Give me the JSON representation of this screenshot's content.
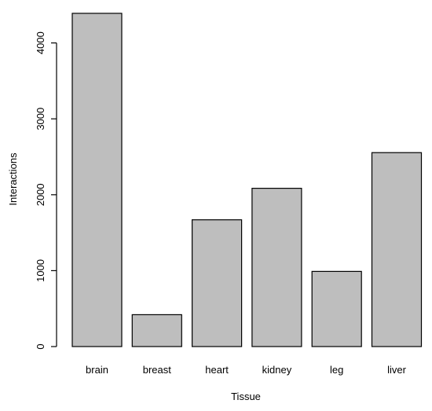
{
  "chart_data": {
    "type": "bar",
    "categories": [
      "brain",
      "breast",
      "heart",
      "kidney",
      "leg",
      "liver"
    ],
    "values": [
      4390,
      420,
      1670,
      2085,
      990,
      2555
    ],
    "title": "",
    "xlabel": "Tissue",
    "ylabel": "Interactions",
    "ylim": [
      0,
      4400
    ],
    "yticks": [
      0,
      1000,
      2000,
      3000,
      4000
    ],
    "grid": false,
    "bar_color": "#bebebe",
    "bar_edge_color": "#000000"
  }
}
